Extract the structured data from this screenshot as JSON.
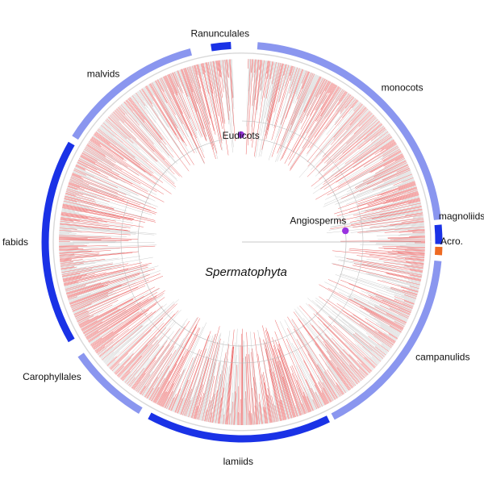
{
  "center_label": "Spermatophyta",
  "colors": {
    "dark": "#1a32e6",
    "light": "#8a96ef",
    "acro": "#ee6a22",
    "branch": "#e53a3a",
    "branch_gray": "#b8b8b8",
    "node": "#9932e0",
    "ring": "#d8d8d8"
  },
  "clades": [
    {
      "label": "monocots",
      "color": "light"
    },
    {
      "label": "magnoliids",
      "color": "dark"
    },
    {
      "label": "Acro.",
      "color": "acro"
    },
    {
      "label": "campanulids",
      "color": "light"
    },
    {
      "label": "lamiids",
      "color": "dark"
    },
    {
      "label": "Carophyllales",
      "color": "light"
    },
    {
      "label": "fabids",
      "color": "dark"
    },
    {
      "label": "malvids",
      "color": "light"
    },
    {
      "label": "Ranunculales",
      "color": "dark"
    }
  ],
  "nodes": [
    {
      "label": "Eudicots"
    },
    {
      "label": "Angiosperms"
    }
  ]
}
